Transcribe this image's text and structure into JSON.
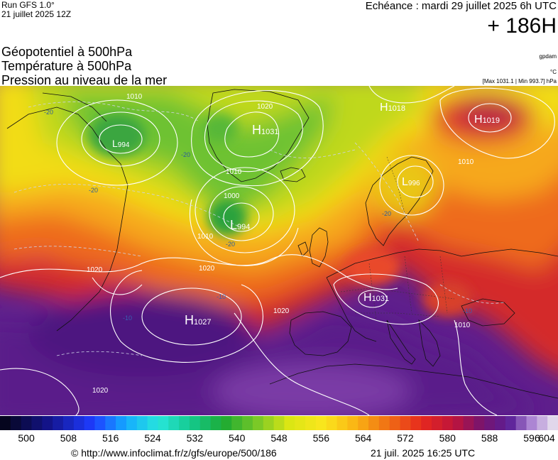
{
  "header": {
    "run": "Run GFS 1.0°",
    "run_date": "21 juillet 2025 12Z",
    "echeance": "Echéance : mardi 29 juillet 2025 6h UTC",
    "lead_time": "+ 186H"
  },
  "titles": {
    "geopotential": "Géopotentiel à 500hPa",
    "temperature": "Température à 500hPa",
    "pressure": "Pression au niveau de la mer"
  },
  "units": {
    "geopotential": "gpdam",
    "temperature": "°C",
    "pressure_range": "[Max 1031.1 | Min 993.7] hPa"
  },
  "colorbar": {
    "min": 500,
    "max": 604,
    "step": 2,
    "tick_labels": [
      "500",
      "508",
      "516",
      "524",
      "532",
      "540",
      "548",
      "556",
      "564",
      "572",
      "580",
      "588",
      "596",
      "604"
    ]
  },
  "pressure_centers": [
    {
      "type": "H",
      "value": "1031",
      "name": "pressure-high-greenland"
    },
    {
      "type": "L",
      "value": "994",
      "name": "pressure-low-labrador"
    },
    {
      "type": "L",
      "value": "994",
      "name": "pressure-low-atlantic"
    },
    {
      "type": "H",
      "value": "1018",
      "name": "pressure-high-barents"
    },
    {
      "type": "H",
      "value": "1019",
      "name": "pressure-high-russia"
    },
    {
      "type": "L",
      "value": "996",
      "name": "pressure-low-scandinavia"
    },
    {
      "type": "H",
      "value": "1031",
      "name": "pressure-high-alps"
    },
    {
      "type": "H",
      "value": "1027",
      "name": "pressure-high-azores"
    }
  ],
  "isobar_labels": [
    {
      "text": "1010",
      "name": "isobar-label-1010-north"
    },
    {
      "text": "1020",
      "name": "isobar-label-1020-greenland"
    },
    {
      "text": "1010",
      "name": "isobar-label-1010-greenland"
    },
    {
      "text": "1000",
      "name": "isobar-label-1000-atlantic"
    },
    {
      "text": "1010",
      "name": "isobar-label-1010-atlantic"
    },
    {
      "text": "1020",
      "name": "isobar-label-1020-west"
    },
    {
      "text": "1020",
      "name": "isobar-label-1020-mid"
    },
    {
      "text": "1020",
      "name": "isobar-label-1020-biscay"
    },
    {
      "text": "1020",
      "name": "isobar-label-1020-south"
    },
    {
      "text": "1010",
      "name": "isobar-label-1010-russia"
    },
    {
      "text": "1010",
      "name": "isobar-label-1010-balkans"
    }
  ],
  "temperature_labels": [
    {
      "text": "-20",
      "name": "temp-label-west"
    },
    {
      "text": "-20",
      "name": "temp-label-labrador"
    },
    {
      "text": "-20",
      "name": "temp-label-greenland"
    },
    {
      "text": "-20",
      "name": "temp-label-atlantic"
    },
    {
      "text": "-20",
      "name": "temp-label-scandinavia"
    },
    {
      "text": "-10",
      "name": "temp-label-mid-atlantic"
    },
    {
      "text": "-10",
      "name": "temp-label-azores"
    },
    {
      "text": "-10",
      "name": "temp-label-black-sea"
    }
  ],
  "footer": {
    "source": "© http://www.infoclimat.fr/z/gfs/europe/500/186",
    "generated": "21 juil. 2025 16:25 UTC"
  }
}
